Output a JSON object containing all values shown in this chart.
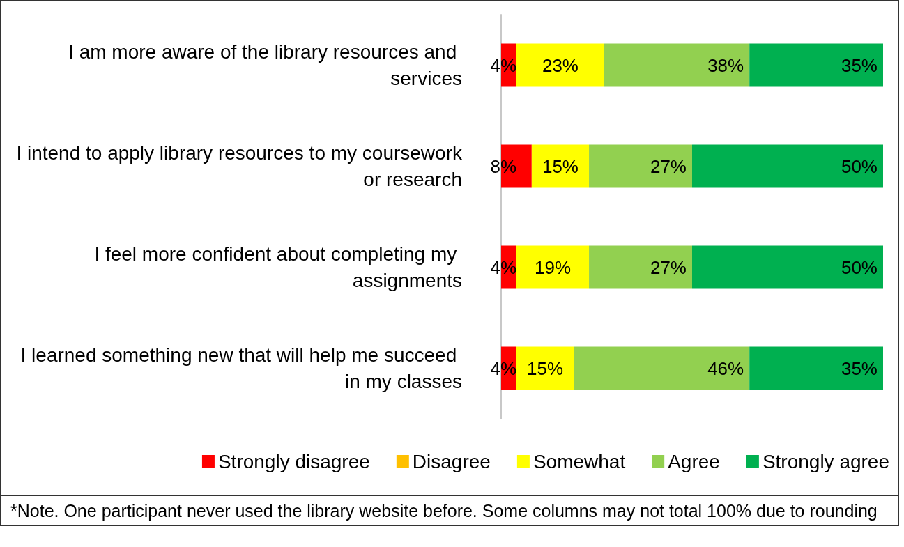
{
  "chart_data": {
    "type": "bar",
    "orientation": "horizontal",
    "stacked": true,
    "categories": [
      "I am more aware of the library resources and services",
      "I intend to apply library resources to my coursework or research",
      "I feel more confident about completing my assignments",
      "I learned something new that will help me succeed in my classes"
    ],
    "series": [
      {
        "name": "Strongly disagree",
        "color": "#ff0000",
        "values": [
          4,
          8,
          4,
          4
        ],
        "value_labels": [
          "4%",
          "8%",
          "4%",
          "4%"
        ]
      },
      {
        "name": "Disagree",
        "color": "#ffc000",
        "values": [
          0,
          0,
          0,
          0
        ],
        "value_labels": [
          null,
          null,
          null,
          null
        ]
      },
      {
        "name": "Somewhat",
        "color": "#ffff00",
        "values": [
          23,
          15,
          19,
          15
        ],
        "value_labels": [
          "23%",
          "15%",
          "19%",
          "15%"
        ]
      },
      {
        "name": "Agree",
        "color": "#92d050",
        "values": [
          38,
          27,
          27,
          46
        ],
        "value_labels": [
          "38%",
          "27%",
          "27%",
          "46%"
        ]
      },
      {
        "name": "Strongly agree",
        "color": "#00b050",
        "values": [
          35,
          50,
          50,
          35
        ],
        "value_labels": [
          "35%",
          "50%",
          "50%",
          "35%"
        ]
      }
    ],
    "xlim": [
      0,
      100
    ],
    "grid": false,
    "legend": "bottom",
    "annotations": [
      "*Note. One participant never used the library website before. Some columns may not total 100% due to rounding"
    ]
  }
}
